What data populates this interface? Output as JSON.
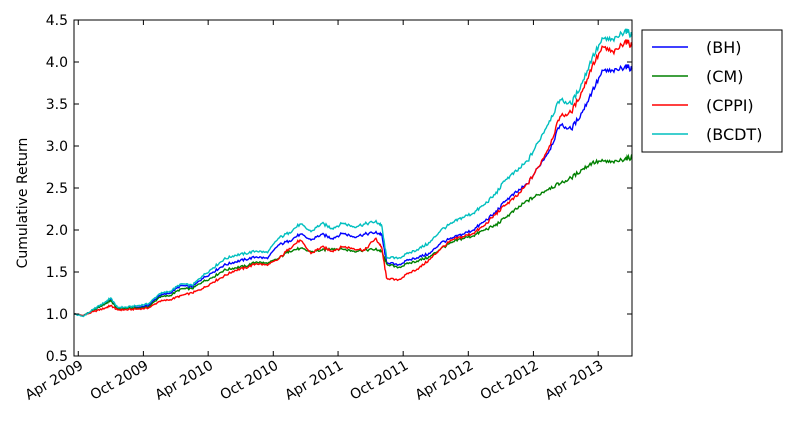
{
  "chart_data": {
    "type": "line",
    "title": "",
    "xlabel": "",
    "ylabel": "Cumulative Return",
    "ylim": [
      0.5,
      4.5
    ],
    "xlim": [
      "2009-03-20",
      "2013-07-05"
    ],
    "yticks": [
      0.5,
      1.0,
      1.5,
      2.0,
      2.5,
      3.0,
      3.5,
      4.0,
      4.5
    ],
    "ytick_labels": [
      "0.5",
      "1.0",
      "1.5",
      "2.0",
      "2.5",
      "3.0",
      "3.5",
      "4.0",
      "4.5"
    ],
    "xticks": [
      "2009-04-01",
      "2009-10-01",
      "2010-04-01",
      "2010-10-01",
      "2011-04-01",
      "2011-10-01",
      "2012-04-01",
      "2012-10-01",
      "2013-04-01"
    ],
    "xtick_labels": [
      "Apr 2009",
      "Oct 2009",
      "Apr 2010",
      "Oct 2010",
      "Apr 2011",
      "Oct 2011",
      "Apr 2012",
      "Oct 2012",
      "Apr 2013"
    ],
    "grid": false,
    "legend_position": "outside-top-right",
    "x": [
      "2009-03-20",
      "2009-04-15",
      "2009-05-15",
      "2009-06-15",
      "2009-07-01",
      "2009-07-20",
      "2009-08-15",
      "2009-09-15",
      "2009-10-15",
      "2009-11-15",
      "2009-12-15",
      "2010-01-15",
      "2010-02-15",
      "2010-03-15",
      "2010-04-15",
      "2010-05-15",
      "2010-06-15",
      "2010-07-15",
      "2010-08-15",
      "2010-09-15",
      "2010-10-15",
      "2010-11-15",
      "2010-12-15",
      "2011-01-15",
      "2011-02-15",
      "2011-03-15",
      "2011-04-15",
      "2011-05-15",
      "2011-06-15",
      "2011-07-15",
      "2011-08-01",
      "2011-08-15",
      "2011-09-15",
      "2011-10-15",
      "2011-11-15",
      "2011-12-15",
      "2012-01-15",
      "2012-02-15",
      "2012-03-15",
      "2012-04-15",
      "2012-05-15",
      "2012-06-15",
      "2012-07-15",
      "2012-08-15",
      "2012-09-15",
      "2012-10-15",
      "2012-11-15",
      "2012-12-15",
      "2013-01-15",
      "2013-02-15",
      "2013-03-15",
      "2013-04-15",
      "2013-05-15",
      "2013-06-15",
      "2013-07-05"
    ],
    "series": [
      {
        "name": "(BH)",
        "color": "#0000ff",
        "values": [
          1.0,
          0.98,
          1.05,
          1.12,
          1.17,
          1.06,
          1.07,
          1.08,
          1.1,
          1.22,
          1.25,
          1.34,
          1.32,
          1.42,
          1.5,
          1.58,
          1.62,
          1.65,
          1.68,
          1.66,
          1.82,
          1.87,
          1.95,
          1.88,
          1.95,
          1.9,
          1.96,
          1.92,
          1.95,
          1.97,
          1.95,
          1.62,
          1.58,
          1.64,
          1.68,
          1.72,
          1.85,
          1.9,
          1.95,
          2.0,
          2.1,
          2.2,
          2.35,
          2.45,
          2.55,
          2.75,
          2.95,
          3.25,
          3.2,
          3.4,
          3.65,
          3.9,
          3.88,
          3.95,
          3.92
        ]
      },
      {
        "name": "(CM)",
        "color": "#008000",
        "values": [
          1.0,
          0.98,
          1.05,
          1.12,
          1.16,
          1.06,
          1.07,
          1.07,
          1.08,
          1.2,
          1.22,
          1.3,
          1.3,
          1.38,
          1.44,
          1.52,
          1.55,
          1.57,
          1.62,
          1.6,
          1.66,
          1.75,
          1.78,
          1.74,
          1.76,
          1.78,
          1.77,
          1.75,
          1.76,
          1.77,
          1.75,
          1.6,
          1.55,
          1.6,
          1.64,
          1.68,
          1.78,
          1.85,
          1.9,
          1.93,
          2.0,
          2.05,
          2.15,
          2.25,
          2.35,
          2.42,
          2.5,
          2.55,
          2.62,
          2.72,
          2.8,
          2.82,
          2.8,
          2.85,
          2.86
        ]
      },
      {
        "name": "(CPPI)",
        "color": "#ff0000",
        "values": [
          1.0,
          0.98,
          1.03,
          1.07,
          1.1,
          1.05,
          1.05,
          1.06,
          1.07,
          1.15,
          1.17,
          1.22,
          1.25,
          1.3,
          1.38,
          1.45,
          1.52,
          1.55,
          1.6,
          1.58,
          1.65,
          1.78,
          1.88,
          1.72,
          1.8,
          1.75,
          1.8,
          1.78,
          1.76,
          1.9,
          1.8,
          1.43,
          1.4,
          1.48,
          1.55,
          1.65,
          1.78,
          1.88,
          1.92,
          1.96,
          2.05,
          2.18,
          2.3,
          2.4,
          2.55,
          2.75,
          3.0,
          3.35,
          3.4,
          3.65,
          3.95,
          4.18,
          4.1,
          4.25,
          4.2
        ]
      },
      {
        "name": "(BCDT)",
        "color": "#00bfbf",
        "values": [
          1.0,
          0.97,
          1.06,
          1.14,
          1.19,
          1.08,
          1.08,
          1.1,
          1.12,
          1.24,
          1.27,
          1.36,
          1.34,
          1.45,
          1.55,
          1.65,
          1.7,
          1.72,
          1.75,
          1.73,
          1.9,
          1.97,
          2.07,
          1.98,
          2.08,
          2.02,
          2.08,
          2.04,
          2.07,
          2.1,
          2.06,
          1.68,
          1.66,
          1.72,
          1.78,
          1.85,
          2.0,
          2.08,
          2.15,
          2.2,
          2.3,
          2.42,
          2.6,
          2.7,
          2.82,
          3.05,
          3.3,
          3.55,
          3.5,
          3.75,
          4.05,
          4.28,
          4.25,
          4.38,
          4.32
        ]
      }
    ]
  }
}
